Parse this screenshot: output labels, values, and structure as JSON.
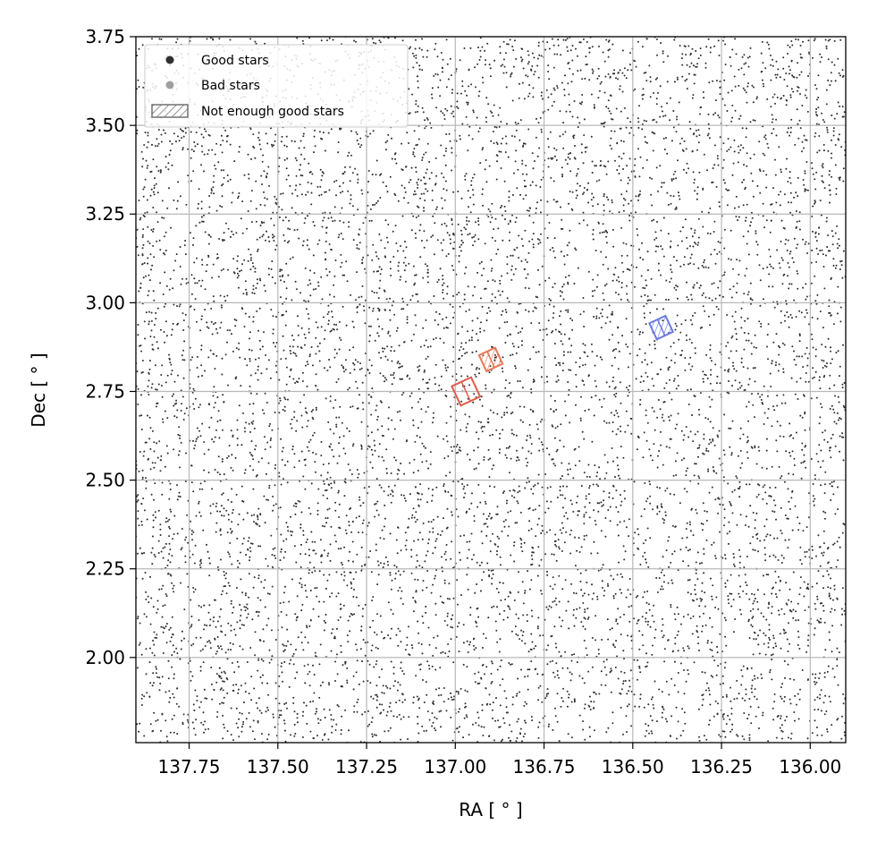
{
  "chart_data": {
    "type": "scatter",
    "title": "",
    "xlabel": "RA [$^\\circ$]",
    "xlabel_display": "RA [ ° ]",
    "ylabel": "Dec [ ° ]",
    "xlim": [
      137.9,
      135.9
    ],
    "ylim": [
      1.76,
      3.75
    ],
    "x_inverted": true,
    "x_ticks": [
      137.75,
      137.5,
      137.25,
      137.0,
      136.75,
      136.5,
      136.25,
      136.0
    ],
    "x_tick_labels": [
      "137.75",
      "137.50",
      "137.25",
      "137.00",
      "136.75",
      "136.50",
      "136.25",
      "136.00"
    ],
    "y_ticks": [
      2.0,
      2.25,
      2.5,
      2.75,
      3.0,
      3.25,
      3.5,
      3.75
    ],
    "y_tick_labels": [
      "2.00",
      "2.25",
      "2.50",
      "2.75",
      "3.00",
      "3.25",
      "3.50",
      "3.75"
    ],
    "grid": true,
    "legend_position": "top-left",
    "legend": [
      {
        "label": "Good stars",
        "marker": "dot",
        "color": "#303030"
      },
      {
        "label": "Bad stars",
        "marker": "dot",
        "color": "#a0a0a0"
      },
      {
        "label": "Not enough good stars",
        "marker": "hatched-rect",
        "color": "#707070"
      }
    ],
    "series": [
      {
        "name": "Good stars",
        "color": "#303030",
        "point_density": "dense",
        "description": "uniform field"
      },
      {
        "name": "Bad stars",
        "color": "#b0b0b0",
        "point_density": "sparse"
      }
    ],
    "detector_footprints": [
      {
        "ra_center": 136.97,
        "dec_center": 2.75,
        "color": "#e05a4a",
        "hatched": false,
        "size_deg": 0.06
      },
      {
        "ra_center": 136.9,
        "dec_center": 2.84,
        "color": "#e87a5a",
        "hatched": true,
        "size_deg": 0.05
      },
      {
        "ra_center": 136.42,
        "dec_center": 2.93,
        "color": "#6a7ae0",
        "hatched": true,
        "size_deg": 0.05
      }
    ]
  }
}
